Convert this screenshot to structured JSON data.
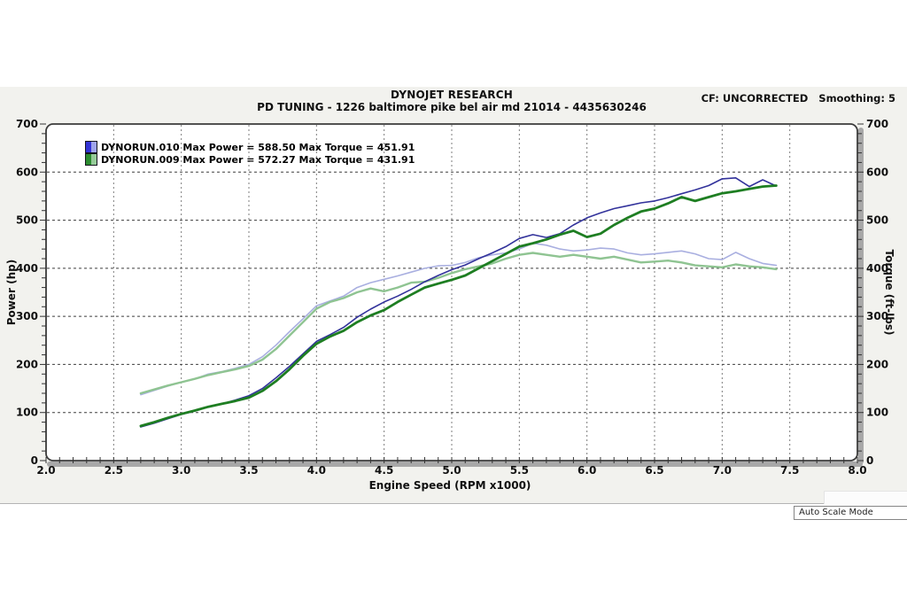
{
  "header": {
    "title": "DYNOJET RESEARCH",
    "subtitle": "PD TUNING - 1226 baltimore pike bel air md 21014 - 4435630246",
    "correction": "CF: UNCORRECTED",
    "smoothing": "Smoothing: 5"
  },
  "legend": [
    {
      "label": "DYNORUN.010 Max Power = 588.50 Max Torque = 451.91",
      "swatch_left": "#3333d6",
      "swatch_right": "#9fa4ec"
    },
    {
      "label": "DYNORUN.009 Max Power = 572.27 Max Torque = 431.91",
      "swatch_left": "#2c8c30",
      "swatch_right": "#95cb98"
    }
  ],
  "footer": {
    "auto_scale_label": "Auto Scale Mode"
  },
  "chart_data": {
    "type": "line",
    "title": "DYNOJET RESEARCH",
    "xlabel": "Engine Speed (RPM x1000)",
    "ylabel_left": "Power (hp)",
    "ylabel_right": "Torque (ft-lbs)",
    "xlim": [
      2.0,
      8.0
    ],
    "ylim": [
      0,
      700
    ],
    "x_tick_labels": [
      "2.0",
      "2.5",
      "3.0",
      "3.5",
      "4.0",
      "4.5",
      "5.0",
      "5.5",
      "6.0",
      "6.5",
      "7.0",
      "7.5",
      "8.0"
    ],
    "y_tick_labels_left": [
      "0",
      "100",
      "200",
      "300",
      "400",
      "500",
      "600",
      "700"
    ],
    "y_tick_labels_right": [
      "0",
      "100",
      "200",
      "300",
      "400",
      "500",
      "600",
      "700"
    ],
    "x_minor_step": 0.1,
    "y_minor_step": 20,
    "grid": "dashed both directions at every 0.5 RPM and every 100 units",
    "legend_position": "top-left inside plot",
    "x": [
      2.7,
      2.8,
      2.9,
      3.0,
      3.1,
      3.2,
      3.3,
      3.4,
      3.5,
      3.6,
      3.7,
      3.8,
      3.9,
      4.0,
      4.1,
      4.2,
      4.3,
      4.4,
      4.5,
      4.6,
      4.7,
      4.8,
      4.9,
      5.0,
      5.1,
      5.2,
      5.3,
      5.4,
      5.5,
      5.6,
      5.7,
      5.8,
      5.9,
      6.0,
      6.1,
      6.2,
      6.3,
      6.4,
      6.5,
      6.6,
      6.7,
      6.8,
      6.9,
      7.0,
      7.1,
      7.2,
      7.3,
      7.4
    ],
    "series": [
      {
        "name": "DYNORUN.010 Torque (ft-lbs)",
        "run": "DYNORUN.010",
        "unit": "ft-lbs",
        "max": 451.91,
        "color": "#a9afe0",
        "width": 1.6,
        "values": [
          137,
          146,
          155,
          163,
          170,
          180,
          185,
          192,
          200,
          216,
          240,
          268,
          295,
          322,
          332,
          342,
          360,
          370,
          377,
          384,
          392,
          400,
          405,
          406,
          412,
          422,
          428,
          432,
          440,
          452,
          448,
          440,
          436,
          438,
          442,
          440,
          432,
          428,
          430,
          433,
          436,
          430,
          420,
          418,
          433,
          420,
          410,
          406
        ]
      },
      {
        "name": "DYNORUN.009 Torque (ft-lbs)",
        "run": "DYNORUN.009",
        "unit": "ft-lbs",
        "max": 431.91,
        "color": "#8fc492",
        "width": 2.4,
        "values": [
          140,
          148,
          156,
          163,
          170,
          178,
          184,
          190,
          197,
          210,
          232,
          260,
          288,
          316,
          330,
          338,
          350,
          358,
          352,
          360,
          370,
          372,
          380,
          390,
          398,
          404,
          410,
          420,
          428,
          432,
          428,
          424,
          428,
          424,
          420,
          424,
          418,
          412,
          414,
          416,
          412,
          406,
          404,
          402,
          408,
          404,
          402,
          398
        ]
      },
      {
        "name": "DYNORUN.010 Power (hp)",
        "run": "DYNORUN.010",
        "unit": "hp",
        "max": 588.5,
        "color": "#32329b",
        "width": 1.6,
        "values": [
          70,
          78,
          87,
          96,
          103,
          112,
          118,
          126,
          135,
          150,
          172,
          196,
          222,
          248,
          262,
          277,
          298,
          315,
          330,
          342,
          356,
          372,
          385,
          397,
          407,
          420,
          432,
          445,
          462,
          470,
          464,
          472,
          490,
          505,
          515,
          524,
          530,
          536,
          540,
          547,
          555,
          563,
          572,
          586,
          588,
          570,
          584,
          571
        ]
      },
      {
        "name": "DYNORUN.009 Power (hp)",
        "run": "DYNORUN.009",
        "unit": "hp",
        "max": 572.27,
        "color": "#1e7e22",
        "width": 2.8,
        "values": [
          72,
          80,
          89,
          97,
          104,
          112,
          118,
          124,
          131,
          145,
          165,
          190,
          218,
          243,
          258,
          270,
          288,
          302,
          313,
          330,
          345,
          360,
          368,
          376,
          385,
          400,
          415,
          430,
          445,
          452,
          460,
          470,
          478,
          465,
          472,
          490,
          505,
          518,
          524,
          535,
          548,
          540,
          548,
          556,
          560,
          565,
          570,
          572
        ]
      }
    ]
  }
}
